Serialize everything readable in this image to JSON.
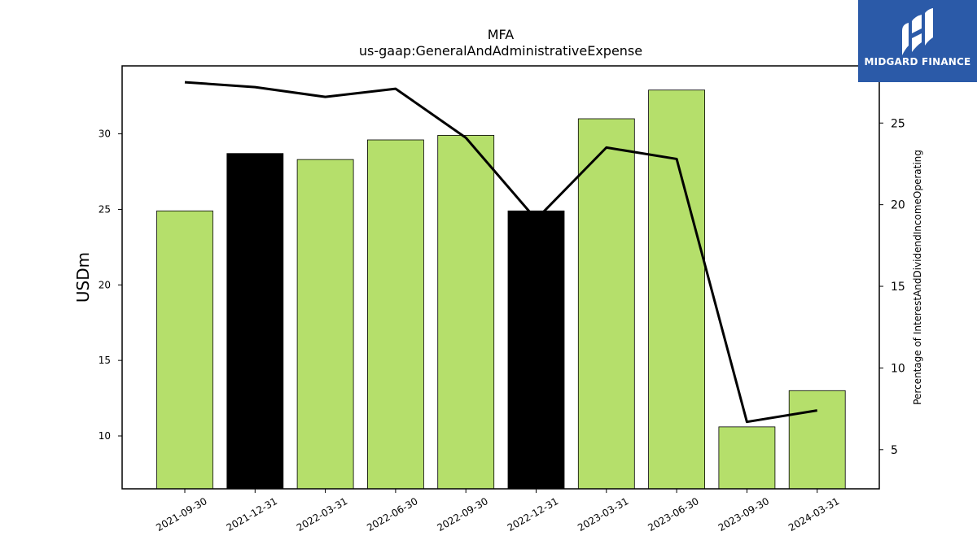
{
  "chart_data": {
    "type": "bar",
    "title": "MFA",
    "subtitle": "us-gaap:GeneralAndAdministrativeExpense",
    "categories": [
      "2021-09-30",
      "2021-12-31",
      "2022-03-31",
      "2022-06-30",
      "2022-09-30",
      "2022-12-31",
      "2023-03-31",
      "2023-06-30",
      "2023-09-30",
      "2024-03-31"
    ],
    "series": [
      {
        "values": [
          24.9,
          28.7,
          28.3,
          29.6,
          29.9,
          24.9,
          31.0,
          32.9,
          10.6,
          13.0
        ],
        "colors": [
          "#b5df6b",
          "#000000",
          "#b5df6b",
          "#b5df6b",
          "#b5df6b",
          "#000000",
          "#b5df6b",
          "#b5df6b",
          "#b5df6b",
          "#b5df6b"
        ],
        "axis": "left"
      },
      {
        "type": "line",
        "values": [
          27.5,
          27.2,
          26.6,
          27.1,
          24.1,
          19.1,
          23.5,
          22.8,
          6.7,
          7.4
        ],
        "color": "#000000",
        "axis": "right"
      }
    ],
    "ylabel": "USDm",
    "ylabel_right": "Percentage of InterestAndDividendIncomeOperating",
    "ylim": [
      6.5,
      34.5
    ],
    "ylim_right": [
      2.6,
      28.5
    ],
    "yticks": [
      10,
      15,
      20,
      25,
      30
    ],
    "yticks_right": [
      5,
      10,
      15,
      20,
      25
    ],
    "grid": false,
    "legend": "none"
  },
  "logo": {
    "text": "MIDGARD FINANCE",
    "background": "#2b5aa8"
  }
}
